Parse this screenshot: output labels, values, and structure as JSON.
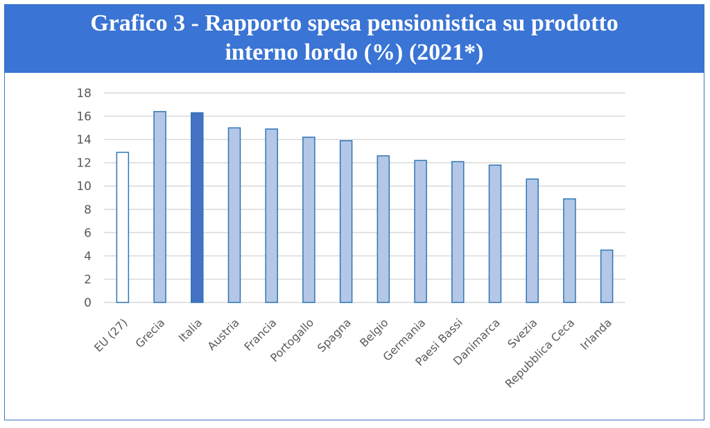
{
  "title_line1": "Grafico 3 - Rapporto spesa pensionistica su prodotto",
  "title_line2": "interno lordo (%) (2021*)",
  "colors": {
    "header_bg": "#3a74d4",
    "bar_fill": "#b4c7e7",
    "bar_highlight": "#4472c4",
    "bar_outline": "#2e75b6",
    "grid": "#d9d9d9"
  },
  "chart_data": {
    "type": "bar",
    "title": "Grafico 3 - Rapporto spesa pensionistica su prodotto interno lordo (%) (2021*)",
    "categories": [
      "EU (27)",
      "Grecia",
      "Italia",
      "Austria",
      "Francia",
      "Portogallo",
      "Spagna",
      "Belgio",
      "Germania",
      "Paesi Bassi",
      "Danimarca",
      "Svezia",
      "Repubblica Ceca",
      "Irlanda"
    ],
    "values": [
      12.9,
      16.4,
      16.3,
      15.0,
      14.9,
      14.2,
      13.9,
      12.6,
      12.2,
      12.1,
      11.8,
      10.6,
      8.9,
      4.5
    ],
    "styles": [
      "outline",
      "light",
      "dark",
      "light",
      "light",
      "light",
      "light",
      "light",
      "light",
      "light",
      "light",
      "light",
      "light",
      "light"
    ],
    "yticks": [
      "0",
      "2",
      "4",
      "6",
      "8",
      "10",
      "12",
      "14",
      "16",
      "18"
    ],
    "ylim": [
      0,
      18
    ],
    "grid": true,
    "legend": "none"
  }
}
